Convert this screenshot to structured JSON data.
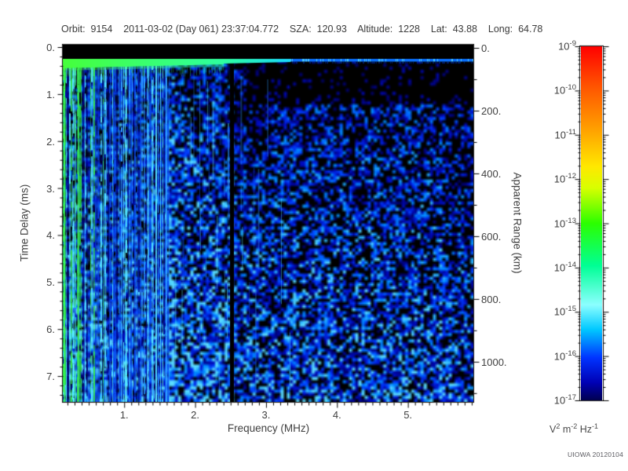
{
  "header": {
    "fields": [
      {
        "label": "Orbit:",
        "value": "9154"
      },
      {
        "label": "",
        "value": "2011-03-02 (Day 061) 23:37:04.772"
      },
      {
        "label": "SZA:",
        "value": "120.93"
      },
      {
        "label": "Altitude:",
        "value": "1228"
      },
      {
        "label": "Lat:",
        "value": "43.88"
      },
      {
        "label": "Long:",
        "value": "64.78"
      }
    ]
  },
  "chart_data": {
    "type": "heatmap",
    "subtype": "radar-sounder-ionogram-spectrogram",
    "xlabel": "Frequency (MHz)",
    "xlim": [
      0.134,
      5.923
    ],
    "x_ticks": {
      "values": [
        1,
        2,
        3,
        4,
        5
      ],
      "labels": [
        "1.",
        "2.",
        "3.",
        "4.",
        "5."
      ],
      "minor_step": 0.1
    },
    "ylabel_left": "Time Delay (ms)",
    "ylim_left": [
      -0.05,
      7.55
    ],
    "y_ticks_left": {
      "values": [
        0,
        1,
        2,
        3,
        4,
        5,
        6,
        7
      ],
      "labels": [
        "0.",
        "1.",
        "2.",
        "3.",
        "4.",
        "5.",
        "6.",
        "7."
      ],
      "minor_step": 0.2
    },
    "ylabel_right": "Apparent Range (km)",
    "ylim_right": [
      -10,
      1128
    ],
    "y_ticks_right": {
      "values": [
        0,
        200,
        400,
        600,
        800,
        1000
      ],
      "labels": [
        "0.",
        "200.",
        "400.",
        "600.",
        "800.",
        "1000."
      ],
      "minor_step": 100
    },
    "grid": false,
    "plot_background": "#000000",
    "colorbar": {
      "tick_base": "10",
      "tick_exponents": [
        "-9",
        "-10",
        "-11",
        "-12",
        "-13",
        "-14",
        "-15",
        "-16",
        "-17"
      ],
      "unit_parts": [
        [
          "V",
          "2"
        ],
        [
          "m",
          "-2"
        ],
        [
          "Hz",
          "-1"
        ]
      ],
      "gradient": [
        [
          "#ff0000",
          0
        ],
        [
          "#ff5200",
          11
        ],
        [
          "#ff9d00",
          23
        ],
        [
          "#ffe800",
          34
        ],
        [
          "#d8ff00",
          40
        ],
        [
          "#2bff00",
          50
        ],
        [
          "#00ff95",
          62
        ],
        [
          "#8cffff",
          73
        ],
        [
          "#00c8ff",
          80
        ],
        [
          "#0033ff",
          88
        ],
        [
          "#0000b4",
          95
        ],
        [
          "#000050",
          100
        ]
      ]
    },
    "features": [
      "black band at top spanning 0 to ~0.3 ms across all frequencies",
      "bright first-return echo line at ~0.3 ms: lime green below ~2.3 MHz thinning to a bright blue line above ~2.5 MHz",
      "dense vertical green/cyan plasma-resonance stripes below ~1.6 MHz spanning the full time-delay range",
      "narrow black data-gap column at ~2.5 MHz",
      "speckled blue echo noise on black background, sparser just under the echo line at high frequency, denser and brighter (cyan patches) toward late time delays"
    ],
    "noise_palette": [
      [
        "#000064",
        0
      ],
      [
        "#000ac0",
        0.3
      ],
      [
        "#003cff",
        0.55
      ],
      [
        "#008cff",
        0.8
      ],
      [
        "#5adcff",
        1
      ]
    ],
    "stripe_colors": {
      "left_green_zone": [
        "#35e651",
        "#22c743",
        "#56f0ff",
        "#1133cc",
        "#000a78"
      ],
      "mid_cyan_zone": [
        "#56e8ff",
        "#2f9dff",
        "#0a44dd",
        "#35e651",
        "#000a78"
      ],
      "blue_zone": [
        "#0a4cf0",
        "#2f9dff",
        "#56e8ff",
        "#000d90"
      ]
    },
    "echo_line_colors": {
      "green": "#46ff3c",
      "spring": "#2effa0",
      "cyan": "#19d8ff",
      "blue": "#0a70ff",
      "blue_bright": "#49c8ff"
    }
  },
  "credit": "UIOWA 20120104",
  "colors": {
    "frame": "#000000",
    "tick_text": "#3f3f3f",
    "page_bg": "#ffffff"
  }
}
